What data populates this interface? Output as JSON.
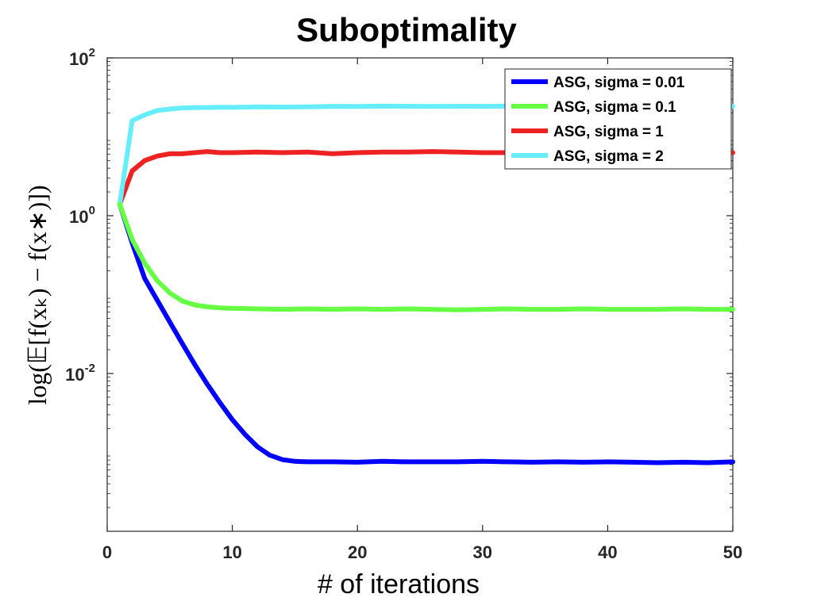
{
  "chart_data": {
    "type": "line",
    "title": "Suboptimality",
    "xlabel": "# of iterations",
    "ylabel": "log(𝔼[f(xₖ) − f(x∗)])",
    "xlim": [
      0,
      50
    ],
    "ylim_log10": [
      -4,
      2
    ],
    "y_scale": "log",
    "xticks": [
      0,
      10,
      20,
      30,
      40,
      50
    ],
    "xtick_labels": [
      "0",
      "10",
      "20",
      "30",
      "40",
      "50"
    ],
    "yticks_log10": [
      2,
      0,
      -2
    ],
    "ytick_labels": [
      {
        "base": "10",
        "exp": "2"
      },
      {
        "base": "10",
        "exp": "0"
      },
      {
        "base": "10",
        "exp": "-2"
      }
    ],
    "grid": false,
    "legend_position": "top-right",
    "series": [
      {
        "name": "ASG, sigma = 0.01",
        "color": "#0000ff",
        "x": [
          1,
          2,
          3,
          4,
          5,
          6,
          7,
          8,
          9,
          10,
          11,
          12,
          13,
          14,
          15,
          16,
          18,
          20,
          22,
          24,
          26,
          28,
          30,
          32,
          34,
          36,
          38,
          40,
          42,
          44,
          46,
          48,
          50
        ],
        "y": [
          1.4,
          0.45,
          0.16,
          0.085,
          0.045,
          0.024,
          0.013,
          0.0073,
          0.0043,
          0.0026,
          0.0017,
          0.00118,
          0.00092,
          0.00081,
          0.00077,
          0.00076,
          0.00076,
          0.00075,
          0.00077,
          0.00076,
          0.00076,
          0.00076,
          0.00077,
          0.00076,
          0.00075,
          0.00076,
          0.00075,
          0.00076,
          0.00075,
          0.00074,
          0.00075,
          0.00074,
          0.00076
        ]
      },
      {
        "name": "ASG, sigma = 0.1",
        "color": "#66ff44",
        "x": [
          1,
          2,
          3,
          4,
          5,
          6,
          7,
          8,
          9,
          10,
          12,
          14,
          16,
          18,
          20,
          22,
          24,
          26,
          28,
          30,
          32,
          34,
          36,
          38,
          40,
          42,
          44,
          46,
          48,
          50
        ],
        "y": [
          1.4,
          0.5,
          0.25,
          0.15,
          0.105,
          0.083,
          0.074,
          0.07,
          0.068,
          0.067,
          0.066,
          0.065,
          0.066,
          0.065,
          0.066,
          0.065,
          0.066,
          0.065,
          0.064,
          0.065,
          0.066,
          0.065,
          0.065,
          0.066,
          0.065,
          0.065,
          0.065,
          0.066,
          0.065,
          0.065
        ]
      },
      {
        "name": "ASG, sigma = 1",
        "color": "#ee2222",
        "x": [
          1,
          2,
          3,
          4,
          5,
          6,
          7,
          8,
          9,
          10,
          12,
          14,
          16,
          18,
          20,
          22,
          24,
          26,
          28,
          30,
          32,
          34,
          36,
          38,
          40,
          42,
          44,
          46,
          48,
          50
        ],
        "y": [
          1.4,
          3.7,
          5.0,
          5.7,
          6.1,
          6.1,
          6.3,
          6.5,
          6.3,
          6.3,
          6.4,
          6.3,
          6.4,
          6.1,
          6.3,
          6.4,
          6.4,
          6.5,
          6.4,
          6.3,
          6.3,
          6.4,
          6.3,
          6.3,
          6.4,
          6.3,
          6.4,
          6.3,
          6.3,
          6.3
        ]
      },
      {
        "name": "ASG, sigma = 2",
        "color": "#66eeff",
        "x": [
          1,
          2,
          3,
          4,
          5,
          6,
          7,
          8,
          9,
          10,
          12,
          14,
          16,
          18,
          20,
          22,
          24,
          26,
          28,
          30,
          32,
          34,
          36,
          38,
          40,
          42,
          44,
          46,
          48,
          50
        ],
        "y": [
          1.4,
          16,
          19,
          21.5,
          22.5,
          23.2,
          23.5,
          23.5,
          23.7,
          23.6,
          24.0,
          23.8,
          24.0,
          24.3,
          24.2,
          24.5,
          24.4,
          24.2,
          24.4,
          24.3,
          24.5,
          24.4,
          24.3,
          24.5,
          24.3,
          24.3,
          24.3,
          24.5,
          24.4,
          24.4
        ]
      }
    ]
  }
}
